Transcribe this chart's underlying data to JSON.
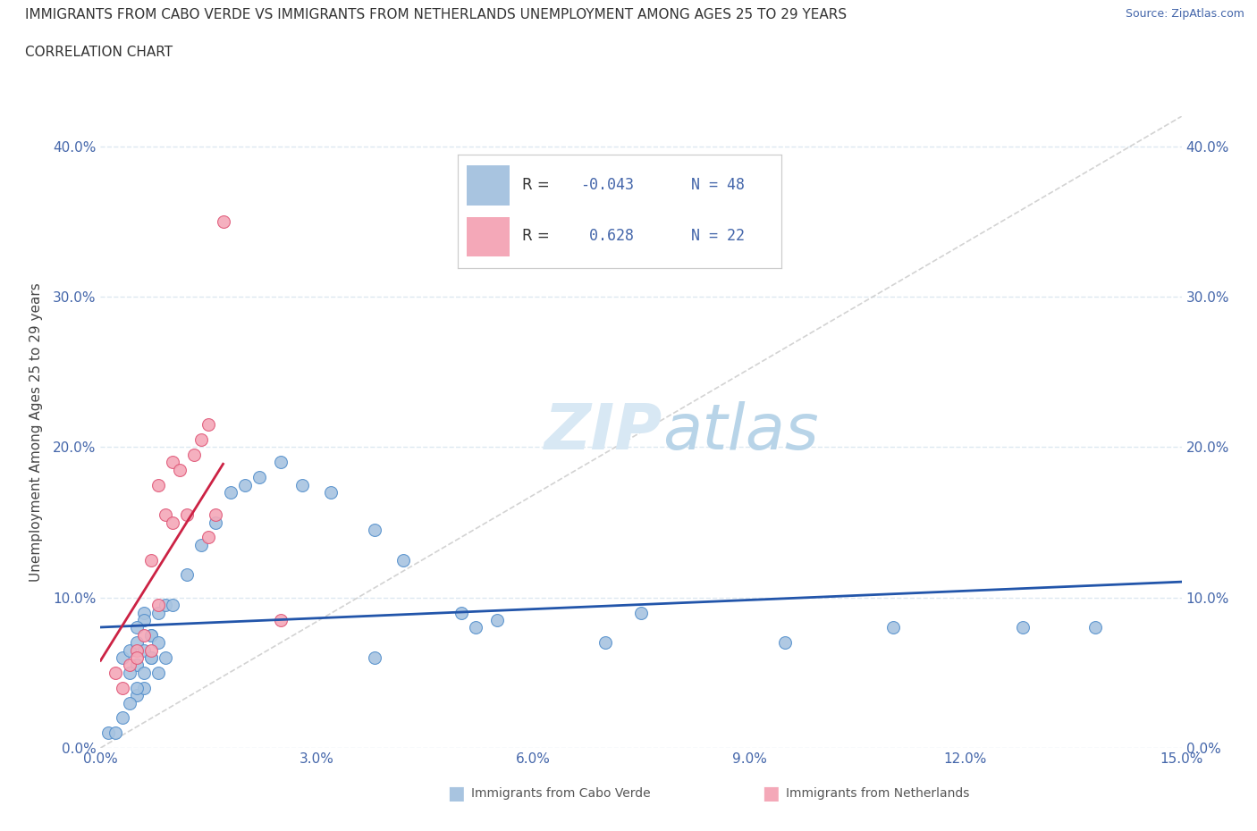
{
  "title_line1": "IMMIGRANTS FROM CABO VERDE VS IMMIGRANTS FROM NETHERLANDS UNEMPLOYMENT AMONG AGES 25 TO 29 YEARS",
  "title_line2": "CORRELATION CHART",
  "source": "Source: ZipAtlas.com",
  "ylabel": "Unemployment Among Ages 25 to 29 years",
  "xlim": [
    0.0,
    0.15
  ],
  "ylim": [
    0.0,
    0.42
  ],
  "xticks": [
    0.0,
    0.03,
    0.06,
    0.09,
    0.12,
    0.15
  ],
  "yticks": [
    0.0,
    0.1,
    0.2,
    0.3,
    0.4
  ],
  "blue_dot_color": "#a8c4e0",
  "blue_edge_color": "#5590cc",
  "pink_dot_color": "#f4a8b8",
  "pink_edge_color": "#e05878",
  "blue_line_color": "#2255aa",
  "pink_line_color": "#cc2244",
  "gray_dash_color": "#c8c8c8",
  "tick_color": "#4466aa",
  "grid_color": "#dde8f0",
  "watermark_color": "#d8e8f4",
  "cabo_verde_x": [
    0.006,
    0.006,
    0.003,
    0.004,
    0.005,
    0.007,
    0.004,
    0.005,
    0.006,
    0.007,
    0.005,
    0.005,
    0.006,
    0.007,
    0.008,
    0.009,
    0.01,
    0.012,
    0.014,
    0.016,
    0.018,
    0.02,
    0.022,
    0.025,
    0.028,
    0.032,
    0.038,
    0.042,
    0.05,
    0.055,
    0.001,
    0.002,
    0.003,
    0.004,
    0.005,
    0.006,
    0.007,
    0.008,
    0.008,
    0.009,
    0.038,
    0.052,
    0.07,
    0.075,
    0.095,
    0.11,
    0.128,
    0.138
  ],
  "cabo_verde_y": [
    0.09,
    0.085,
    0.06,
    0.065,
    0.055,
    0.075,
    0.05,
    0.035,
    0.04,
    0.06,
    0.07,
    0.08,
    0.065,
    0.075,
    0.09,
    0.095,
    0.095,
    0.115,
    0.135,
    0.15,
    0.17,
    0.175,
    0.18,
    0.19,
    0.175,
    0.17,
    0.145,
    0.125,
    0.09,
    0.085,
    0.01,
    0.01,
    0.02,
    0.03,
    0.04,
    0.05,
    0.06,
    0.07,
    0.05,
    0.06,
    0.06,
    0.08,
    0.07,
    0.09,
    0.07,
    0.08,
    0.08,
    0.08
  ],
  "netherlands_x": [
    0.002,
    0.003,
    0.004,
    0.005,
    0.005,
    0.006,
    0.007,
    0.007,
    0.008,
    0.008,
    0.009,
    0.01,
    0.01,
    0.011,
    0.012,
    0.013,
    0.014,
    0.015,
    0.015,
    0.016,
    0.017,
    0.025
  ],
  "netherlands_y": [
    0.05,
    0.04,
    0.055,
    0.065,
    0.06,
    0.075,
    0.065,
    0.125,
    0.095,
    0.175,
    0.155,
    0.15,
    0.19,
    0.185,
    0.155,
    0.195,
    0.205,
    0.215,
    0.14,
    0.155,
    0.35,
    0.085
  ]
}
